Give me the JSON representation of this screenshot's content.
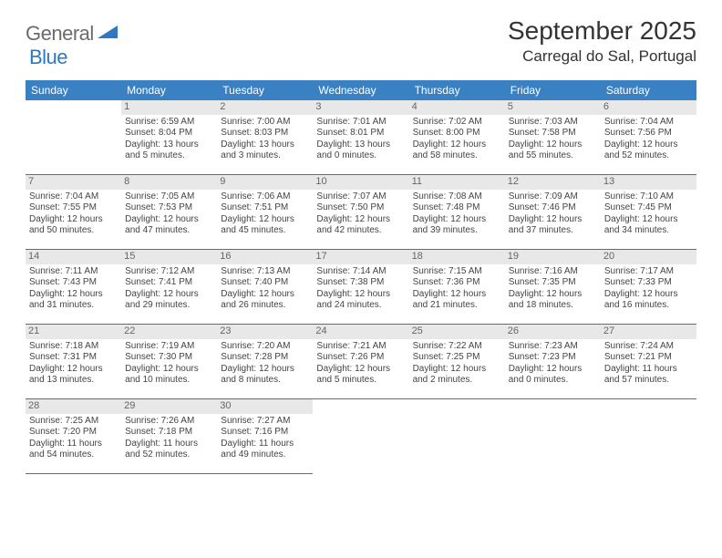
{
  "logo": {
    "general": "General",
    "blue": "Blue"
  },
  "title": "September 2025",
  "location": "Carregal do Sal, Portugal",
  "headerBg": "#3a81c4",
  "dayHeaders": [
    "Sunday",
    "Monday",
    "Tuesday",
    "Wednesday",
    "Thursday",
    "Friday",
    "Saturday"
  ],
  "weeks": [
    [
      null,
      {
        "n": "1",
        "sr": "6:59 AM",
        "ss": "8:04 PM",
        "dl": "13 hours and 5 minutes."
      },
      {
        "n": "2",
        "sr": "7:00 AM",
        "ss": "8:03 PM",
        "dl": "13 hours and 3 minutes."
      },
      {
        "n": "3",
        "sr": "7:01 AM",
        "ss": "8:01 PM",
        "dl": "13 hours and 0 minutes."
      },
      {
        "n": "4",
        "sr": "7:02 AM",
        "ss": "8:00 PM",
        "dl": "12 hours and 58 minutes."
      },
      {
        "n": "5",
        "sr": "7:03 AM",
        "ss": "7:58 PM",
        "dl": "12 hours and 55 minutes."
      },
      {
        "n": "6",
        "sr": "7:04 AM",
        "ss": "7:56 PM",
        "dl": "12 hours and 52 minutes."
      }
    ],
    [
      {
        "n": "7",
        "sr": "7:04 AM",
        "ss": "7:55 PM",
        "dl": "12 hours and 50 minutes."
      },
      {
        "n": "8",
        "sr": "7:05 AM",
        "ss": "7:53 PM",
        "dl": "12 hours and 47 minutes."
      },
      {
        "n": "9",
        "sr": "7:06 AM",
        "ss": "7:51 PM",
        "dl": "12 hours and 45 minutes."
      },
      {
        "n": "10",
        "sr": "7:07 AM",
        "ss": "7:50 PM",
        "dl": "12 hours and 42 minutes."
      },
      {
        "n": "11",
        "sr": "7:08 AM",
        "ss": "7:48 PM",
        "dl": "12 hours and 39 minutes."
      },
      {
        "n": "12",
        "sr": "7:09 AM",
        "ss": "7:46 PM",
        "dl": "12 hours and 37 minutes."
      },
      {
        "n": "13",
        "sr": "7:10 AM",
        "ss": "7:45 PM",
        "dl": "12 hours and 34 minutes."
      }
    ],
    [
      {
        "n": "14",
        "sr": "7:11 AM",
        "ss": "7:43 PM",
        "dl": "12 hours and 31 minutes."
      },
      {
        "n": "15",
        "sr": "7:12 AM",
        "ss": "7:41 PM",
        "dl": "12 hours and 29 minutes."
      },
      {
        "n": "16",
        "sr": "7:13 AM",
        "ss": "7:40 PM",
        "dl": "12 hours and 26 minutes."
      },
      {
        "n": "17",
        "sr": "7:14 AM",
        "ss": "7:38 PM",
        "dl": "12 hours and 24 minutes."
      },
      {
        "n": "18",
        "sr": "7:15 AM",
        "ss": "7:36 PM",
        "dl": "12 hours and 21 minutes."
      },
      {
        "n": "19",
        "sr": "7:16 AM",
        "ss": "7:35 PM",
        "dl": "12 hours and 18 minutes."
      },
      {
        "n": "20",
        "sr": "7:17 AM",
        "ss": "7:33 PM",
        "dl": "12 hours and 16 minutes."
      }
    ],
    [
      {
        "n": "21",
        "sr": "7:18 AM",
        "ss": "7:31 PM",
        "dl": "12 hours and 13 minutes."
      },
      {
        "n": "22",
        "sr": "7:19 AM",
        "ss": "7:30 PM",
        "dl": "12 hours and 10 minutes."
      },
      {
        "n": "23",
        "sr": "7:20 AM",
        "ss": "7:28 PM",
        "dl": "12 hours and 8 minutes."
      },
      {
        "n": "24",
        "sr": "7:21 AM",
        "ss": "7:26 PM",
        "dl": "12 hours and 5 minutes."
      },
      {
        "n": "25",
        "sr": "7:22 AM",
        "ss": "7:25 PM",
        "dl": "12 hours and 2 minutes."
      },
      {
        "n": "26",
        "sr": "7:23 AM",
        "ss": "7:23 PM",
        "dl": "12 hours and 0 minutes."
      },
      {
        "n": "27",
        "sr": "7:24 AM",
        "ss": "7:21 PM",
        "dl": "11 hours and 57 minutes."
      }
    ],
    [
      {
        "n": "28",
        "sr": "7:25 AM",
        "ss": "7:20 PM",
        "dl": "11 hours and 54 minutes."
      },
      {
        "n": "29",
        "sr": "7:26 AM",
        "ss": "7:18 PM",
        "dl": "11 hours and 52 minutes."
      },
      {
        "n": "30",
        "sr": "7:27 AM",
        "ss": "7:16 PM",
        "dl": "11 hours and 49 minutes."
      },
      null,
      null,
      null,
      null
    ]
  ],
  "labels": {
    "sunrise": "Sunrise: ",
    "sunset": "Sunset: ",
    "daylight": "Daylight: "
  }
}
